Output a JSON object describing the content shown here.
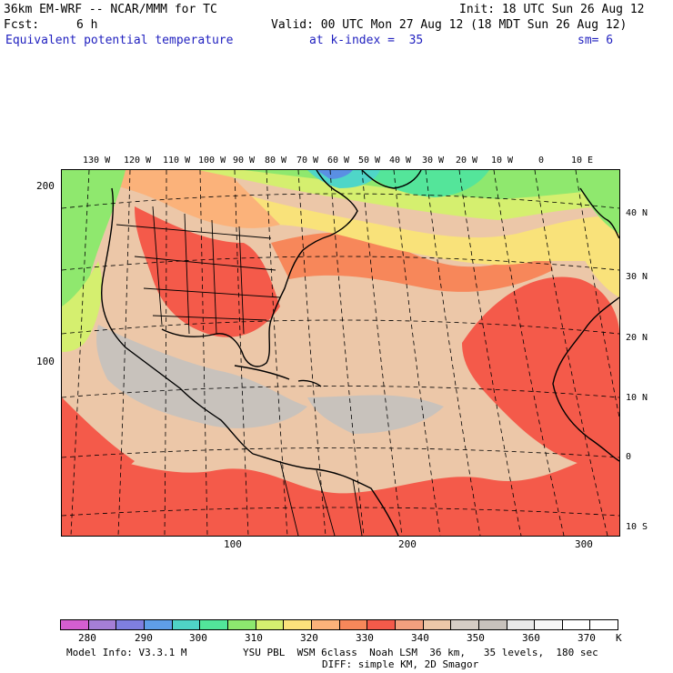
{
  "header": {
    "model_line": "36km EM-WRF -- NCAR/MMM for TC",
    "init": "Init: 18 UTC Sun 26 Aug 12",
    "fcst_label": "Fcst:",
    "fcst_value": "6 h",
    "valid": "Valid: 00 UTC Mon 27 Aug 12 (18 MDT Sun 26 Aug 12)",
    "field": "Equivalent potential temperature",
    "kindex": "at k-index =  35",
    "smooth": "sm= 6"
  },
  "map": {
    "lon_labels": [
      "130 W",
      "120 W",
      "110 W",
      "100 W",
      "90 W",
      "80 W",
      "70 W",
      "60 W",
      "50 W",
      "40 W",
      "30 W",
      "20 W",
      "10 W",
      "0",
      "10 E"
    ],
    "lat_labels": [
      "40 N",
      "30 N",
      "20 N",
      "10 N",
      "0",
      "10 S"
    ],
    "grid_x_labels": [
      "100",
      "200",
      "300"
    ],
    "grid_y_labels": [
      "200",
      "100"
    ],
    "colors": {
      "gray": "#c8c2bc",
      "tan": "#ecc7a8",
      "salmon": "#f2a07e",
      "red": "#f45a4a",
      "orange": "#f7875a",
      "peach": "#fbb27a",
      "yellow": "#f9e27a",
      "lime": "#d5ef6f",
      "green": "#8fe86e",
      "teal": "#54e59a",
      "cyan": "#4fd6c8",
      "blue": "#5a8fe3",
      "purple": "#8a6fe0"
    }
  },
  "colorbar": {
    "labels": [
      "280",
      "290",
      "300",
      "310",
      "320",
      "330",
      "340",
      "350",
      "360",
      "370",
      "K"
    ],
    "colors": [
      "#d45ed0",
      "#a57ed7",
      "#7f7fe0",
      "#5f9ee8",
      "#4fd3c6",
      "#52e59a",
      "#8de86e",
      "#d5ef6f",
      "#fbe27b",
      "#fbb27a",
      "#f7875a",
      "#f45a4a",
      "#f2a07e",
      "#ecc7a8",
      "#d5cdc5",
      "#c8c2bc",
      "#e9e9e9",
      "#f6f6f6",
      "#ffffff",
      "#ffffff"
    ]
  },
  "footer": {
    "model_info": "Model Info: V3.3.1 M",
    "physics": "YSU PBL  WSM 6class  Noah LSM  36 km,   35 levels,  180 sec",
    "diff": "DIFF: simple KM, 2D Smagor"
  }
}
